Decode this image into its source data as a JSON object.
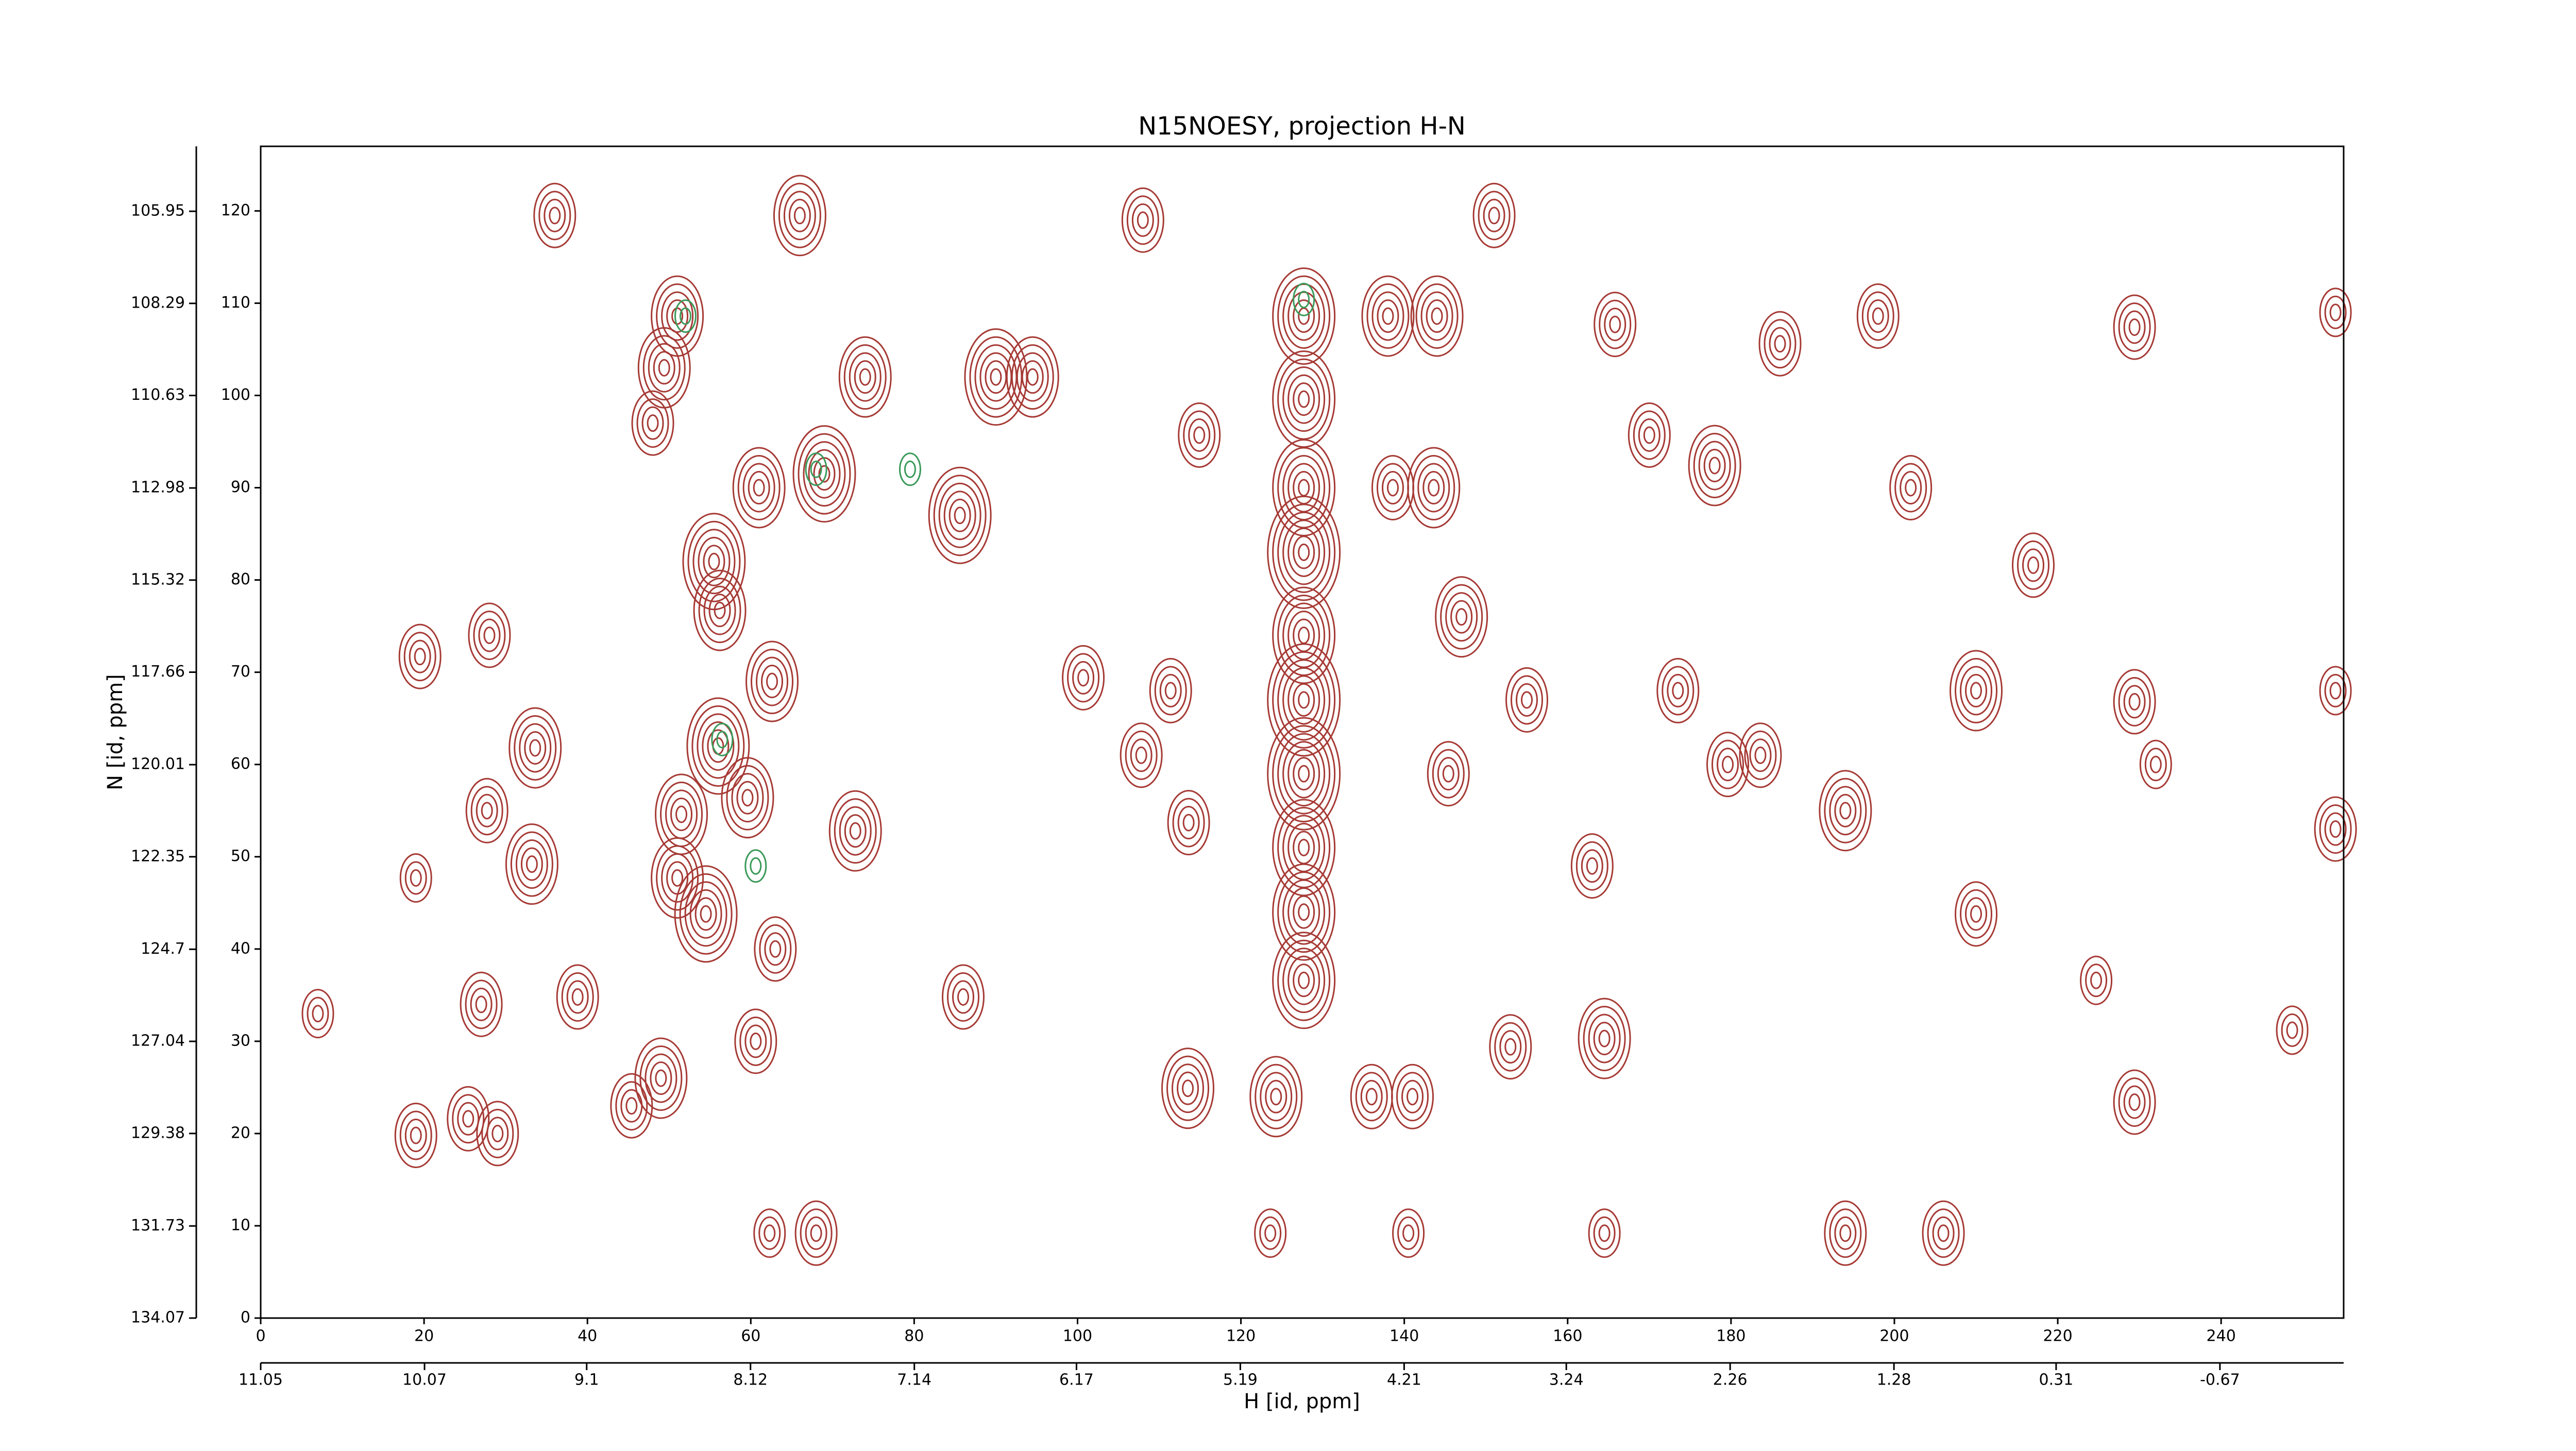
{
  "chart_data": {
    "type": "contour",
    "title": "N15NOESY, projection H-N",
    "xlabel": "H [id, ppm]",
    "ylabel": "N [id, ppm]",
    "xlim": [
      0,
      255
    ],
    "ylim": [
      0,
      127
    ],
    "xticks": [
      0,
      20,
      40,
      60,
      80,
      100,
      120,
      140,
      160,
      180,
      200,
      220,
      240
    ],
    "yticks": [
      0,
      10,
      20,
      30,
      40,
      50,
      60,
      70,
      80,
      90,
      100,
      110,
      120
    ],
    "x2lim": [
      11.05,
      -1.41
    ],
    "x2ticks": [
      11.05,
      10.07,
      9.1,
      8.12,
      7.14,
      6.17,
      5.19,
      4.21,
      3.24,
      2.26,
      1.28,
      0.31,
      -0.67
    ],
    "y2lim": [
      134.07,
      104.3
    ],
    "y2ticks": [
      134.07,
      131.73,
      129.38,
      127.04,
      124.7,
      122.35,
      120.01,
      117.66,
      115.32,
      112.98,
      110.63,
      108.29,
      105.95
    ],
    "series": [
      {
        "color": "#a63a35",
        "x": [
          36,
          66,
          108,
          151,
          51,
          49.4,
          48,
          74,
          90,
          94.5,
          85.6,
          61,
          69,
          127.7,
          127.7,
          127.7,
          127.7,
          127.7,
          127.7,
          127.7,
          127.7,
          127.7,
          127.7,
          143.6,
          138.6,
          138,
          144,
          165.8,
          198,
          229.4,
          202,
          178,
          170,
          210,
          173.5,
          194,
          183.6,
          210,
          254,
          254,
          254,
          229.4,
          232,
          19.5,
          28,
          19,
          27.7,
          27,
          7,
          19,
          25.4,
          29,
          55.5,
          56.2,
          62.6,
          56,
          51.5,
          59.6,
          72.8,
          51,
          54.5,
          63,
          60.6,
          33.2,
          33.6,
          38.8,
          45.4,
          49,
          68,
          62.3,
          100.7,
          111.4,
          114.9,
          113.5,
          124.3,
          141,
          136,
          153,
          164.5,
          224.7,
          229.4,
          248.7,
          194,
          206,
          217,
          186,
          86,
          123.6,
          140.5,
          164.5,
          107.8,
          113.6,
          145.4,
          147,
          163,
          179.6,
          155
        ],
        "y": [
          119.5,
          119.5,
          119,
          119.5,
          108.6,
          103,
          97,
          102,
          102,
          102,
          87,
          90,
          91.5,
          108.6,
          99.6,
          90,
          83,
          74,
          67,
          59,
          51,
          44,
          36.6,
          90,
          90,
          108.6,
          108.6,
          107.7,
          108.6,
          107.4,
          90,
          92.4,
          95.7,
          68,
          68,
          55,
          61,
          43.8,
          109,
          53,
          68,
          66.8,
          60,
          71.7,
          74,
          47.7,
          55,
          34,
          33,
          19.8,
          21.6,
          20,
          82,
          76.7,
          69,
          62,
          54.6,
          56.4,
          52.8,
          47.7,
          43.8,
          40,
          30,
          49.2,
          61.8,
          34.8,
          23,
          26,
          9.2,
          9.2,
          69.4,
          68,
          95.7,
          24.9,
          24,
          24,
          24,
          29.4,
          30.3,
          36.6,
          23.4,
          31.2,
          9.2,
          9.2,
          81.6,
          105.6,
          34.8,
          9.2,
          9.2,
          9.2,
          61,
          53.7,
          59,
          76,
          49,
          60,
          67
        ],
        "levels": [
          4,
          5,
          4,
          4,
          5,
          5,
          4,
          5,
          6,
          5,
          6,
          5,
          6,
          6,
          6,
          6,
          7,
          6,
          7,
          7,
          6,
          6,
          6,
          5,
          4,
          5,
          5,
          4,
          4,
          4,
          4,
          5,
          4,
          5,
          4,
          5,
          4,
          4,
          3,
          4,
          3,
          4,
          3,
          4,
          4,
          3,
          4,
          4,
          3,
          4,
          4,
          4,
          6,
          5,
          5,
          6,
          5,
          5,
          5,
          5,
          6,
          4,
          4,
          5,
          5,
          4,
          4,
          5,
          4,
          3,
          4,
          4,
          4,
          5,
          5,
          4,
          4,
          4,
          5,
          3,
          4,
          3,
          4,
          4,
          4,
          4,
          4,
          3,
          3,
          3,
          4,
          4,
          4,
          5,
          4,
          4,
          4
        ]
      },
      {
        "color": "#3a9a5a",
        "x": [
          52,
          127.7,
          79.5,
          68,
          56.5,
          60.6
        ],
        "y": [
          108.6,
          110.4,
          92,
          92,
          62.7,
          49
        ],
        "levels": [
          2,
          2,
          2,
          2,
          2,
          2
        ]
      }
    ]
  }
}
